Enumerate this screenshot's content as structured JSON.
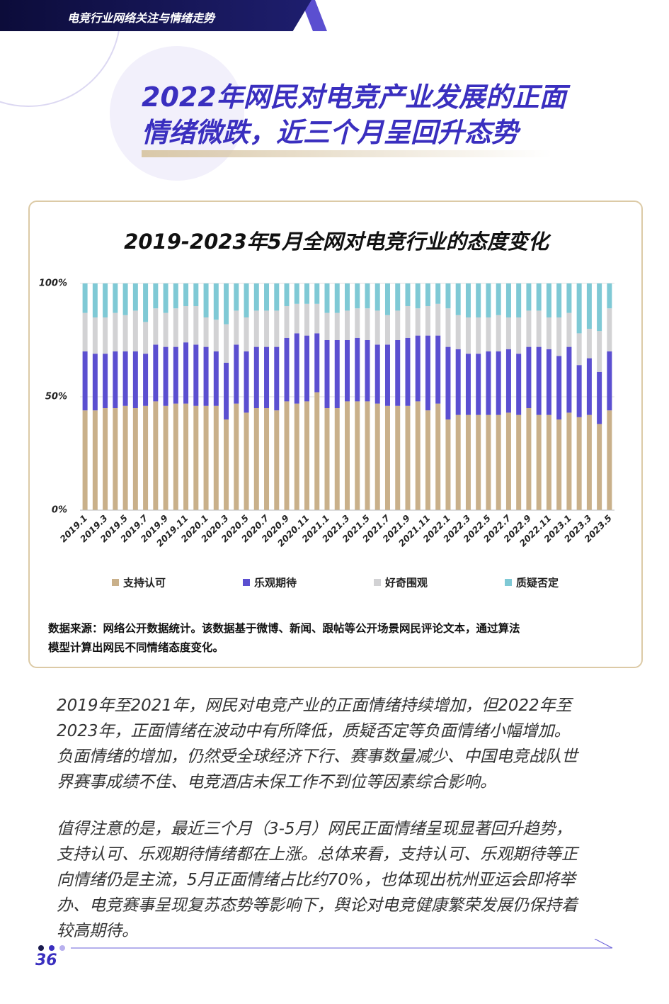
{
  "header": {
    "section": "电竞行业网络关注与情绪走势",
    "title_lines": [
      "2022年网民对电竞产业发展的正面",
      "情绪微跌，近三个月呈回升态势"
    ]
  },
  "chart_data": {
    "type": "stacked_bar",
    "title": "2019-2023年5月全网对电竞行业的态度变化",
    "categories": [
      "2019.1",
      null,
      "2019.3",
      null,
      "2019.5",
      null,
      "2019.7",
      null,
      "2019.9",
      null,
      "2019.11",
      null,
      "2020.1",
      null,
      "2020.3",
      null,
      "2020.5",
      null,
      "2020.7",
      null,
      "2020.9",
      null,
      "2020.11",
      null,
      "2021.1",
      null,
      "2021.3",
      null,
      "2021.5",
      null,
      "2021.7",
      null,
      "2021.9",
      null,
      "2021.11",
      null,
      "2022.1",
      null,
      "2022.3",
      null,
      "2022.5",
      null,
      "2022.7",
      null,
      "2022.9",
      null,
      "2022.11",
      null,
      "2023.1",
      null,
      "2023.3",
      null,
      "2023.5"
    ],
    "series": [
      {
        "name": "支持认可",
        "color": "#c9b08a",
        "values": [
          44,
          44,
          45,
          45,
          46,
          45,
          46,
          48,
          46,
          47,
          47,
          46,
          46,
          46,
          40,
          47,
          43,
          45,
          45,
          44,
          48,
          47,
          48,
          52,
          45,
          45,
          48,
          48,
          48,
          47,
          46,
          46,
          46,
          48,
          44,
          47,
          40,
          42,
          42,
          42,
          42,
          42,
          43,
          42,
          45,
          42,
          42,
          40,
          43,
          41,
          42,
          38,
          44
        ]
      },
      {
        "name": "乐观期待",
        "color": "#5b4fd0",
        "values": [
          26,
          25,
          24,
          25,
          24,
          25,
          23,
          25,
          26,
          25,
          27,
          27,
          26,
          24,
          25,
          26,
          27,
          27,
          27,
          28,
          28,
          31,
          29,
          26,
          30,
          30,
          27,
          28,
          27,
          26,
          27,
          29,
          30,
          29,
          33,
          30,
          32,
          29,
          27,
          27,
          28,
          28,
          28,
          27,
          27,
          30,
          29,
          28,
          29,
          23,
          25,
          23,
          26
        ]
      },
      {
        "name": "好奇围观",
        "color": "#d2d2d4",
        "values": [
          17,
          16,
          16,
          17,
          16,
          18,
          14,
          16,
          15,
          17,
          16,
          17,
          13,
          14,
          17,
          15,
          15,
          16,
          16,
          16,
          14,
          13,
          14,
          13,
          12,
          12,
          13,
          13,
          14,
          15,
          13,
          13,
          14,
          12,
          13,
          14,
          17,
          15,
          16,
          16,
          15,
          16,
          14,
          16,
          16,
          16,
          14,
          17,
          15,
          14,
          13,
          18,
          19
        ]
      },
      {
        "name": "质疑否定",
        "color": "#7fc9d5",
        "values": [
          13,
          15,
          15,
          13,
          14,
          12,
          17,
          11,
          13,
          11,
          10,
          10,
          15,
          16,
          18,
          12,
          15,
          12,
          12,
          12,
          10,
          9,
          9,
          9,
          13,
          13,
          12,
          11,
          11,
          12,
          14,
          12,
          10,
          11,
          10,
          9,
          11,
          14,
          15,
          15,
          15,
          14,
          15,
          15,
          12,
          12,
          15,
          15,
          13,
          22,
          20,
          21,
          11
        ]
      }
    ],
    "ylim": [
      0,
      100
    ],
    "yticks": [
      {
        "value": 0,
        "label": "0%"
      },
      {
        "value": 50,
        "label": "50%"
      },
      {
        "value": 100,
        "label": "100%"
      }
    ],
    "grid": true,
    "legend": "bottom"
  },
  "source": [
    "数据来源：网络公开数据统计。该数据基于微博、新闻、跟帖等公开场景网民评论文本，通过算法",
    "模型计算出网民不同情绪态度变化。"
  ],
  "paragraphs": [
    [
      "2019年至2021年，网民对电竞产业的正面情绪持续增加，但2022年至",
      "2023年，正面情绪在波动中有所降低，质疑否定等负面情绪小幅增加。",
      "负面情绪的增加，仍然受全球经济下行、赛事数量减少、中国电竞战队世",
      "界赛事成绩不佳、电竞酒店未保工作不到位等因素综合影响。"
    ],
    [
      "值得注意的是，最近三个月（3-5月）网民正面情绪呈现显著回升趋势，",
      "支持认可、乐观期待情绪都在上涨。总体来看，支持认可、乐观期待等正",
      "向情绪仍是主流，5月正面情绪占比约70%，也体现出杭州亚运会即将举",
      "办、电竞赛事呈现复苏态势等影响下，舆论对电竞健康繁荣发展仍保持着",
      "较高期待。"
    ]
  ],
  "page_number": "36"
}
